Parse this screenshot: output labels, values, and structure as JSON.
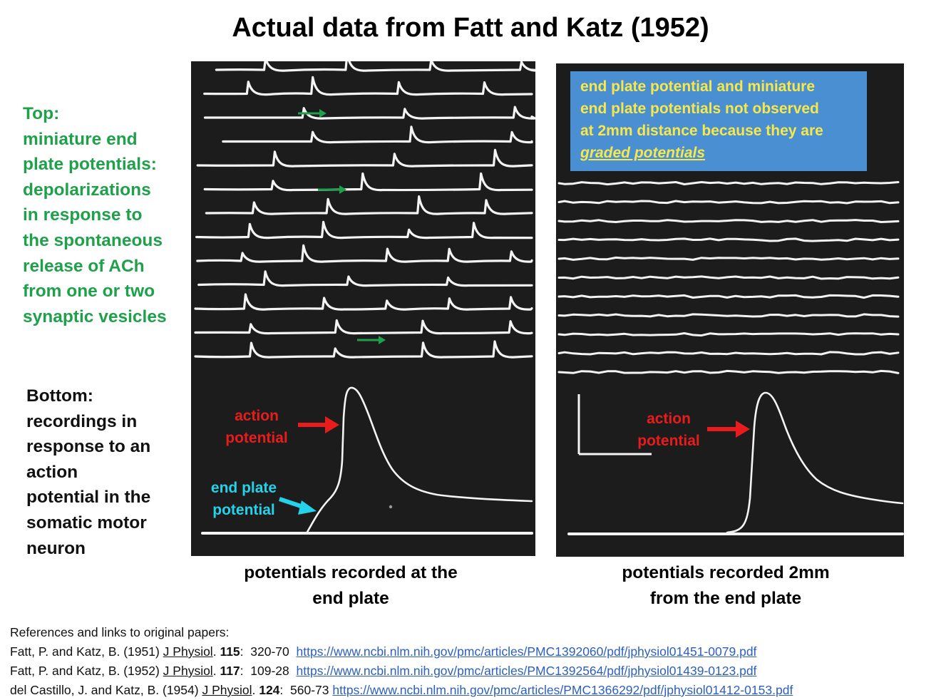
{
  "title": "Actual data from Fatt and Katz (1952)",
  "left_top_text": [
    "Top:",
    "miniature end",
    "plate potentials:",
    "depolarizations",
    "in response to",
    "the spontaneous",
    "release of ACh",
    "from one or two",
    "synaptic vesicles"
  ],
  "left_bottom_text": [
    "Bottom:",
    "recordings in",
    "response to an",
    "action",
    "potential in the",
    "somatic motor",
    "neuron"
  ],
  "left_panel": {
    "action_potential_label": [
      "action",
      "potential"
    ],
    "end_plate_label": [
      "end plate",
      "potential"
    ],
    "caption": [
      "potentials recorded at the",
      "end plate"
    ]
  },
  "right_panel": {
    "info_box": {
      "lines": [
        "end plate potential and miniature",
        "end plate potentials not observed",
        "at 2mm distance because they are"
      ],
      "emphasis": "graded potentials"
    },
    "action_potential_label": [
      "action",
      "potential"
    ],
    "caption": [
      "potentials recorded 2mm",
      "from the end plate"
    ]
  },
  "colors": {
    "green_text": "#1fa04a",
    "red_label": "#e81c1c",
    "cyan_label": "#23d3ea",
    "info_box_bg": "#4a8fd1",
    "info_box_text": "#f7e84a",
    "link": "#2c5fbf",
    "panel_bg": "#1c1c1c"
  },
  "references": {
    "heading": "References and links to original papers:",
    "items": [
      {
        "authors": "Fatt, P. and Katz, B. (1951)",
        "journal": "J Physiol",
        "volume": "115",
        "pages": "320-70",
        "url": "https://www.ncbi.nlm.nih.gov/pmc/articles/PMC1392060/pdf/jphysiol01451-0079.pdf"
      },
      {
        "authors": "Fatt, P. and Katz, B. (1952)",
        "journal": "J Physiol",
        "volume": "117",
        "pages": "109-28",
        "url": "https://www.ncbi.nlm.nih.gov/pmc/articles/PMC1392564/pdf/jphysiol01439-0123.pdf"
      },
      {
        "authors": "del Castillo, J. and Katz, B. (1954)",
        "journal": "J Physiol",
        "volume": "124",
        "pages": "560-73",
        "url": "https://www.ncbi.nlm.nih.gov/pmc/articles/PMC1366292/pdf/jphysiol01412-0153.pdf"
      }
    ]
  }
}
